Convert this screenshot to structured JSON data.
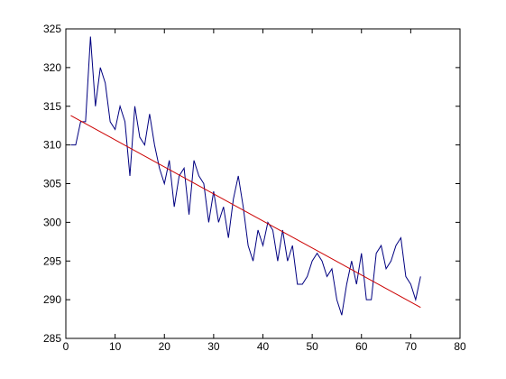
{
  "chart_data": {
    "type": "line",
    "series": [
      {
        "color": "#000080",
        "x": [
          1,
          2,
          3,
          4,
          5,
          6,
          7,
          8,
          9,
          10,
          11,
          12,
          13,
          14,
          15,
          16,
          17,
          18,
          19,
          20,
          21,
          22,
          23,
          24,
          25,
          26,
          27,
          28,
          29,
          30,
          31,
          32,
          33,
          34,
          35,
          36,
          37,
          38,
          39,
          40,
          41,
          42,
          43,
          44,
          45,
          46,
          47,
          48,
          49,
          50,
          51,
          52,
          53,
          54,
          55,
          56,
          57,
          58,
          59,
          60,
          61,
          62,
          63,
          64,
          65,
          66,
          67,
          68,
          69,
          70,
          71,
          72
        ],
        "values": [
          310,
          310,
          313,
          313,
          324,
          315,
          320,
          318,
          313,
          312,
          315,
          313,
          306,
          315,
          311,
          310,
          314,
          310,
          307,
          305,
          308,
          302,
          306,
          307,
          301,
          308,
          306,
          305,
          300,
          304,
          300,
          302,
          298,
          303,
          306,
          302,
          297,
          295,
          299,
          297,
          300,
          299,
          295,
          299,
          295,
          297,
          292,
          292,
          293,
          295,
          296,
          295,
          293,
          294,
          290,
          288,
          292,
          295,
          292,
          296,
          290,
          290,
          296,
          297,
          294,
          295,
          297,
          298,
          293,
          292,
          290,
          293
        ]
      },
      {
        "color": "#cc0000",
        "x": [
          1,
          72
        ],
        "values": [
          313.8,
          289
        ]
      }
    ],
    "xlim": [
      0,
      80
    ],
    "xticks": [
      0,
      10,
      20,
      30,
      40,
      50,
      60,
      70,
      80
    ],
    "ylim": [
      285,
      325
    ],
    "yticks": [
      285,
      290,
      295,
      300,
      305,
      310,
      315,
      320,
      325
    ]
  }
}
